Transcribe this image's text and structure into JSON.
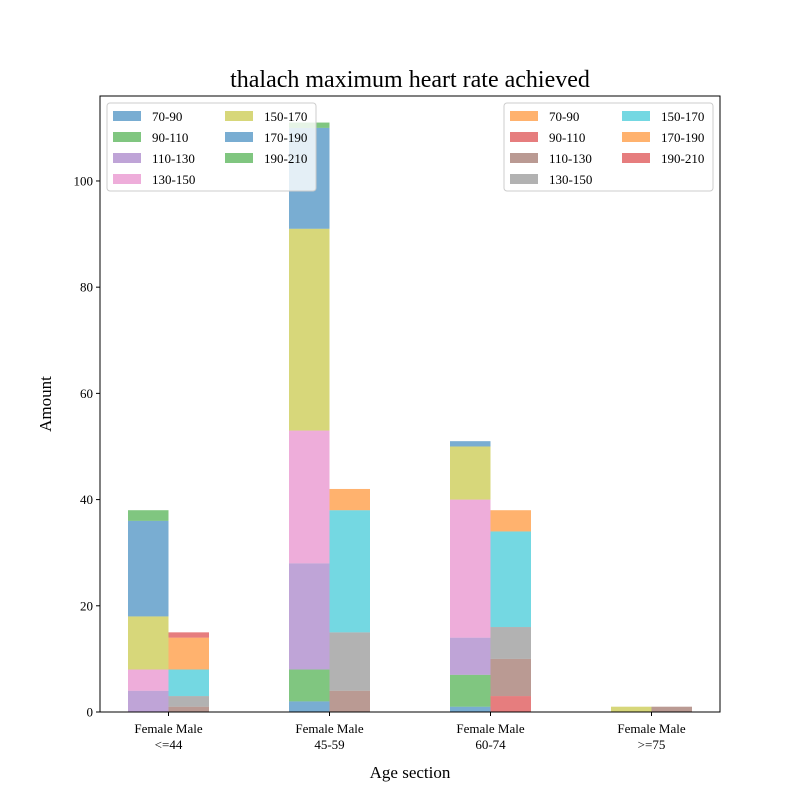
{
  "chart_data": {
    "type": "bar",
    "stacked": true,
    "title": "thalach maximum heart rate achieved",
    "xlabel": "Age section",
    "ylabel": "Amount",
    "ylim": [
      0,
      116
    ],
    "yticks": [
      0,
      20,
      40,
      60,
      80,
      100
    ],
    "grid": false,
    "categories": [
      {
        "top": "Female Male",
        "bottom": "<=44"
      },
      {
        "top": "Female Male",
        "bottom": "45-59"
      },
      {
        "top": "Female Male",
        "bottom": "60-74"
      },
      {
        "top": "Female Male",
        "bottom": ">=75"
      }
    ],
    "groups": [
      {
        "name": "Female",
        "legend_position": "upper left",
        "series": [
          {
            "name": "70-90",
            "color": "#1f77b4",
            "values": [
              0,
              2,
              1,
              0
            ]
          },
          {
            "name": "90-110",
            "color": "#2ca02c",
            "values": [
              0,
              6,
              6,
              0
            ]
          },
          {
            "name": "110-130",
            "color": "#9467bd",
            "values": [
              4,
              20,
              7,
              0
            ]
          },
          {
            "name": "130-150",
            "color": "#e377c2",
            "values": [
              4,
              25,
              26,
              0
            ]
          },
          {
            "name": "150-170",
            "color": "#bcbd22",
            "values": [
              10,
              38,
              10,
              1
            ]
          },
          {
            "name": "170-190",
            "color": "#1f77b4",
            "values": [
              18,
              19,
              1,
              0
            ]
          },
          {
            "name": "190-210",
            "color": "#2ca02c",
            "values": [
              2,
              1,
              0,
              0
            ]
          }
        ]
      },
      {
        "name": "Male",
        "legend_position": "upper right",
        "series": [
          {
            "name": "70-90",
            "color": "#ff7f0e",
            "values": [
              0,
              0,
              0,
              0
            ]
          },
          {
            "name": "90-110",
            "color": "#d62728",
            "values": [
              0,
              0,
              3,
              0
            ]
          },
          {
            "name": "110-130",
            "color": "#8c564b",
            "values": [
              1,
              4,
              7,
              1
            ]
          },
          {
            "name": "130-150",
            "color": "#7f7f7f",
            "values": [
              2,
              11,
              6,
              0
            ]
          },
          {
            "name": "150-170",
            "color": "#17becf",
            "values": [
              5,
              23,
              18,
              0
            ]
          },
          {
            "name": "170-190",
            "color": "#ff7f0e",
            "values": [
              6,
              4,
              4,
              0
            ]
          },
          {
            "name": "190-210",
            "color": "#d62728",
            "values": [
              1,
              0,
              0,
              0
            ]
          }
        ]
      }
    ]
  }
}
